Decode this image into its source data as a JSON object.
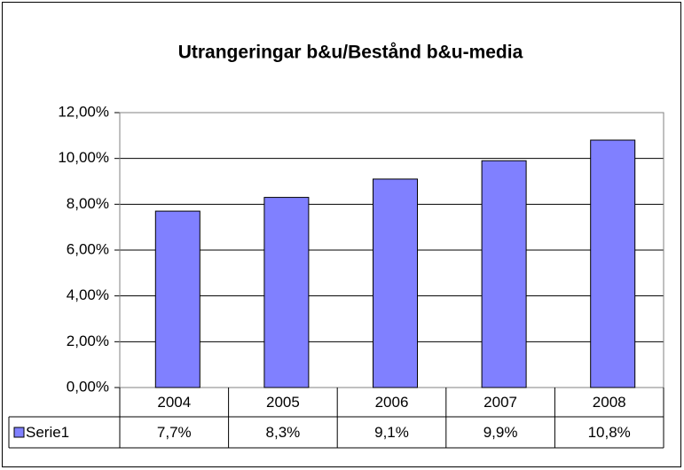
{
  "chart_data": {
    "type": "bar",
    "title": "Utrangeringar b&u/Bestånd b&u-media",
    "categories": [
      "2004",
      "2005",
      "2006",
      "2007",
      "2008"
    ],
    "series": [
      {
        "name": "Serie1",
        "color": "#8080ff",
        "values": [
          7.7,
          8.3,
          9.1,
          9.9,
          10.8
        ],
        "value_labels": [
          "7,7%",
          "8,3%",
          "9,1%",
          "9,9%",
          "10,8%"
        ]
      }
    ],
    "ylim": [
      0,
      12
    ],
    "yticks": [
      {
        "value": 0,
        "label": "0,00%"
      },
      {
        "value": 2,
        "label": "2,00%"
      },
      {
        "value": 4,
        "label": "4,00%"
      },
      {
        "value": 6,
        "label": "6,00%"
      },
      {
        "value": 8,
        "label": "8,00%"
      },
      {
        "value": 10,
        "label": "10,00%"
      },
      {
        "value": 12,
        "label": "12,00%"
      }
    ],
    "grid": true
  }
}
